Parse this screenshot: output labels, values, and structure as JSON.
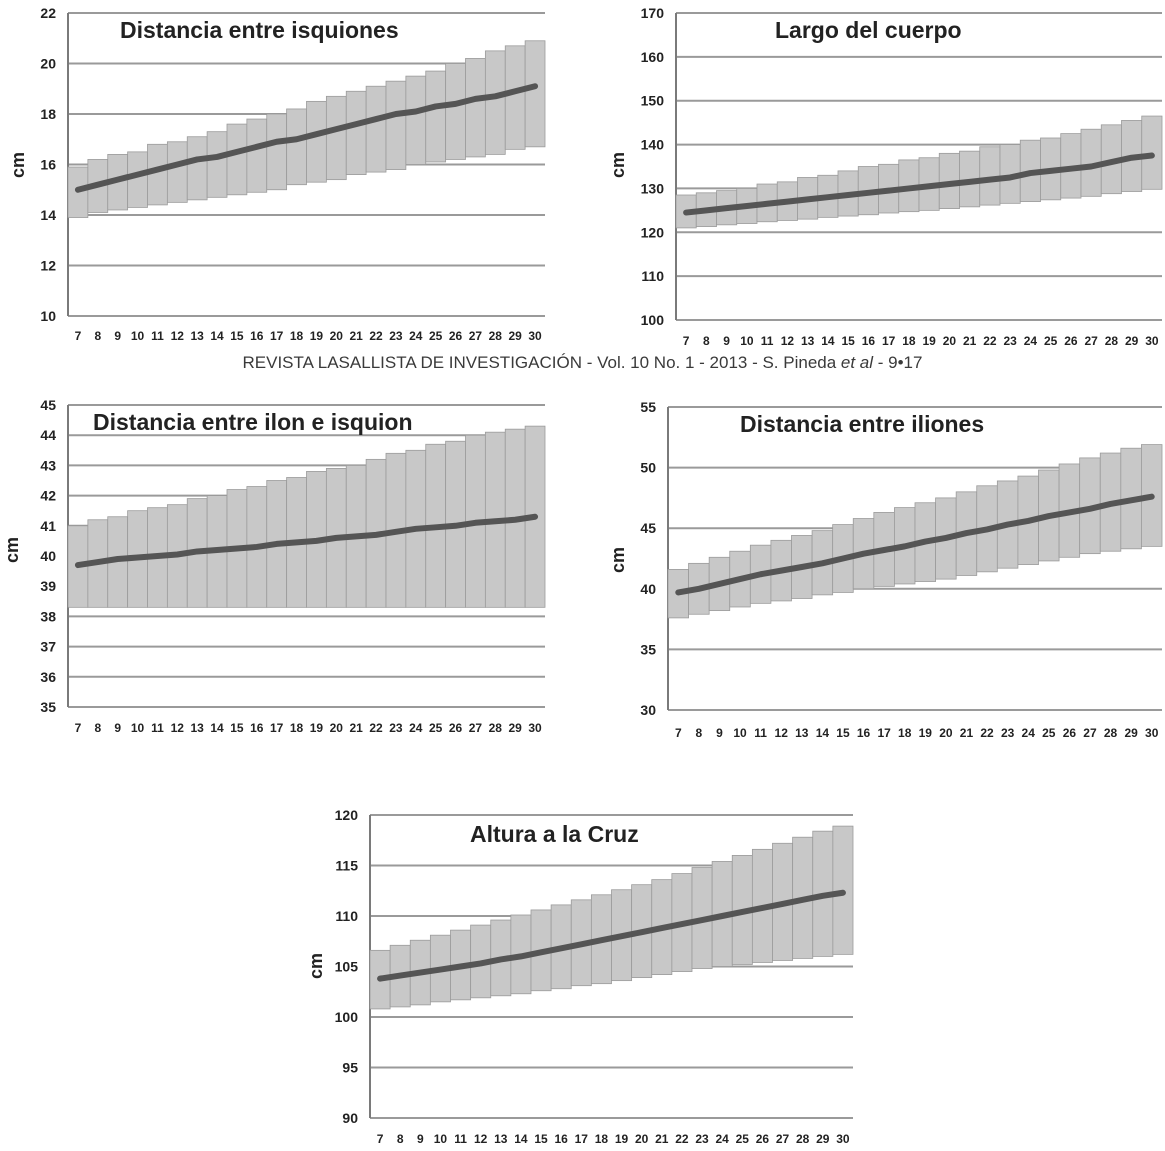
{
  "caption": {
    "prefix": "REVISTA LASALLISTA DE INVESTIGACIÓN - Vol. 10 No. 1 - 2013 - S. Pineda ",
    "italic": "et al",
    "suffix": " - 9•17"
  },
  "colors": {
    "band": "#c8c8c8",
    "band_edge": "#9b9b9b",
    "line": "#555555",
    "grid": "#9a9a9a",
    "text": "#222222"
  },
  "chart_data": [
    {
      "type": "area",
      "title": "Distancia entre isquiones",
      "ylabel": "cm",
      "ylim": [
        10,
        22
      ],
      "yticks": [
        10,
        12,
        14,
        16,
        18,
        20,
        22
      ],
      "x": [
        7,
        8,
        9,
        10,
        11,
        12,
        13,
        14,
        15,
        16,
        17,
        18,
        19,
        20,
        21,
        22,
        23,
        24,
        25,
        26,
        27,
        28,
        29,
        30
      ],
      "series": [
        {
          "role": "line",
          "values": [
            15.0,
            15.2,
            15.4,
            15.6,
            15.8,
            16.0,
            16.2,
            16.3,
            16.5,
            16.7,
            16.9,
            17.0,
            17.2,
            17.4,
            17.6,
            17.8,
            18.0,
            18.1,
            18.3,
            18.4,
            18.6,
            18.7,
            18.9,
            19.1
          ]
        },
        {
          "role": "band_low",
          "values": [
            13.9,
            14.1,
            14.2,
            14.3,
            14.4,
            14.5,
            14.6,
            14.7,
            14.8,
            14.9,
            15.0,
            15.2,
            15.3,
            15.4,
            15.6,
            15.7,
            15.8,
            16.0,
            16.1,
            16.2,
            16.3,
            16.4,
            16.6,
            16.7
          ]
        },
        {
          "role": "band_high",
          "values": [
            15.9,
            16.2,
            16.4,
            16.5,
            16.8,
            16.9,
            17.1,
            17.3,
            17.6,
            17.8,
            18.0,
            18.2,
            18.5,
            18.7,
            18.9,
            19.1,
            19.3,
            19.5,
            19.7,
            20.0,
            20.2,
            20.5,
            20.7,
            20.9
          ]
        }
      ]
    },
    {
      "type": "area",
      "title": "Largo del cuerpo",
      "ylabel": "cm",
      "ylim": [
        100,
        170
      ],
      "yticks": [
        100,
        110,
        120,
        130,
        140,
        150,
        160,
        170
      ],
      "x": [
        7,
        8,
        9,
        10,
        11,
        12,
        13,
        14,
        15,
        16,
        17,
        18,
        19,
        20,
        21,
        22,
        23,
        24,
        25,
        26,
        27,
        28,
        29,
        30
      ],
      "series": [
        {
          "role": "line",
          "values": [
            124.5,
            125.0,
            125.5,
            126.0,
            126.5,
            127.0,
            127.5,
            128.0,
            128.5,
            129.0,
            129.5,
            130.0,
            130.5,
            131.0,
            131.5,
            132.0,
            132.5,
            133.5,
            134.0,
            134.5,
            135.0,
            136.0,
            137.0,
            137.5
          ]
        },
        {
          "role": "band_low",
          "values": [
            121.0,
            121.3,
            121.7,
            122.0,
            122.4,
            122.7,
            123.0,
            123.4,
            123.7,
            124.0,
            124.4,
            124.7,
            125.0,
            125.4,
            125.8,
            126.2,
            126.6,
            127.0,
            127.4,
            127.8,
            128.2,
            128.8,
            129.3,
            129.8
          ]
        },
        {
          "role": "band_high",
          "values": [
            128.5,
            129.0,
            129.5,
            130.0,
            131.0,
            131.5,
            132.5,
            133.0,
            134.0,
            135.0,
            135.5,
            136.5,
            137.0,
            138.0,
            138.5,
            139.5,
            140.0,
            141.0,
            141.5,
            142.5,
            143.5,
            144.5,
            145.5,
            146.5
          ]
        }
      ]
    },
    {
      "type": "area",
      "title": "Distancia entre ilon e isquion",
      "ylabel": "cm",
      "ylim": [
        35,
        45
      ],
      "yticks": [
        35,
        36,
        37,
        38,
        39,
        40,
        41,
        42,
        43,
        44,
        45
      ],
      "x": [
        7,
        8,
        9,
        10,
        11,
        12,
        13,
        14,
        15,
        16,
        17,
        18,
        19,
        20,
        21,
        22,
        23,
        24,
        25,
        26,
        27,
        28,
        29,
        30
      ],
      "series": [
        {
          "role": "line",
          "values": [
            39.7,
            39.8,
            39.9,
            39.95,
            40.0,
            40.05,
            40.15,
            40.2,
            40.25,
            40.3,
            40.4,
            40.45,
            40.5,
            40.6,
            40.65,
            40.7,
            40.8,
            40.9,
            40.95,
            41.0,
            41.1,
            41.15,
            41.2,
            41.3
          ]
        },
        {
          "role": "band_low",
          "values": [
            38.3,
            38.3,
            38.3,
            38.3,
            38.3,
            38.3,
            38.3,
            38.3,
            38.3,
            38.3,
            38.3,
            38.3,
            38.3,
            38.3,
            38.3,
            38.3,
            38.3,
            38.3,
            38.3,
            38.3,
            38.3,
            38.3,
            38.3,
            38.3
          ]
        },
        {
          "role": "band_high",
          "values": [
            41.0,
            41.2,
            41.3,
            41.5,
            41.6,
            41.7,
            41.9,
            42.0,
            42.2,
            42.3,
            42.5,
            42.6,
            42.8,
            42.9,
            43.0,
            43.2,
            43.4,
            43.5,
            43.7,
            43.8,
            44.0,
            44.1,
            44.2,
            44.3
          ]
        }
      ]
    },
    {
      "type": "area",
      "title": "Distancia entre iliones",
      "ylabel": "cm",
      "ylim": [
        30,
        55
      ],
      "yticks": [
        30,
        35,
        40,
        45,
        50,
        55
      ],
      "x": [
        7,
        8,
        9,
        10,
        11,
        12,
        13,
        14,
        15,
        16,
        17,
        18,
        19,
        20,
        21,
        22,
        23,
        24,
        25,
        26,
        27,
        28,
        29,
        30
      ],
      "series": [
        {
          "role": "line",
          "values": [
            39.7,
            40.0,
            40.4,
            40.8,
            41.2,
            41.5,
            41.8,
            42.1,
            42.5,
            42.9,
            43.2,
            43.5,
            43.9,
            44.2,
            44.6,
            44.9,
            45.3,
            45.6,
            46.0,
            46.3,
            46.6,
            47.0,
            47.3,
            47.6
          ]
        },
        {
          "role": "band_low",
          "values": [
            37.6,
            37.9,
            38.2,
            38.5,
            38.8,
            39.0,
            39.2,
            39.5,
            39.7,
            40.0,
            40.2,
            40.4,
            40.6,
            40.8,
            41.1,
            41.4,
            41.7,
            42.0,
            42.3,
            42.6,
            42.9,
            43.1,
            43.3,
            43.5
          ]
        },
        {
          "role": "band_high",
          "values": [
            41.6,
            42.1,
            42.6,
            43.1,
            43.6,
            44.0,
            44.4,
            44.8,
            45.3,
            45.8,
            46.3,
            46.7,
            47.1,
            47.5,
            48.0,
            48.5,
            48.9,
            49.3,
            49.8,
            50.3,
            50.8,
            51.2,
            51.6,
            51.9
          ]
        }
      ]
    },
    {
      "type": "area",
      "title": "Altura a la Cruz",
      "ylabel": "cm",
      "ylim": [
        90,
        120
      ],
      "yticks": [
        90,
        95,
        100,
        105,
        110,
        115,
        120
      ],
      "x": [
        7,
        8,
        9,
        10,
        11,
        12,
        13,
        14,
        15,
        16,
        17,
        18,
        19,
        20,
        21,
        22,
        23,
        24,
        25,
        26,
        27,
        28,
        29,
        30
      ],
      "series": [
        {
          "role": "line",
          "values": [
            103.8,
            104.1,
            104.4,
            104.7,
            105.0,
            105.3,
            105.7,
            106.0,
            106.4,
            106.8,
            107.2,
            107.6,
            108.0,
            108.4,
            108.8,
            109.2,
            109.6,
            110.0,
            110.4,
            110.8,
            111.2,
            111.6,
            112.0,
            112.3
          ]
        },
        {
          "role": "band_low",
          "values": [
            100.8,
            101.0,
            101.2,
            101.5,
            101.7,
            101.9,
            102.1,
            102.3,
            102.6,
            102.8,
            103.1,
            103.3,
            103.6,
            103.9,
            104.2,
            104.5,
            104.8,
            105.0,
            105.2,
            105.4,
            105.6,
            105.8,
            106.0,
            106.2
          ]
        },
        {
          "role": "band_high",
          "values": [
            106.6,
            107.1,
            107.6,
            108.1,
            108.6,
            109.1,
            109.6,
            110.1,
            110.6,
            111.1,
            111.6,
            112.1,
            112.6,
            113.1,
            113.6,
            114.2,
            114.8,
            115.4,
            116.0,
            116.6,
            117.2,
            117.8,
            118.4,
            118.9
          ]
        }
      ]
    }
  ]
}
